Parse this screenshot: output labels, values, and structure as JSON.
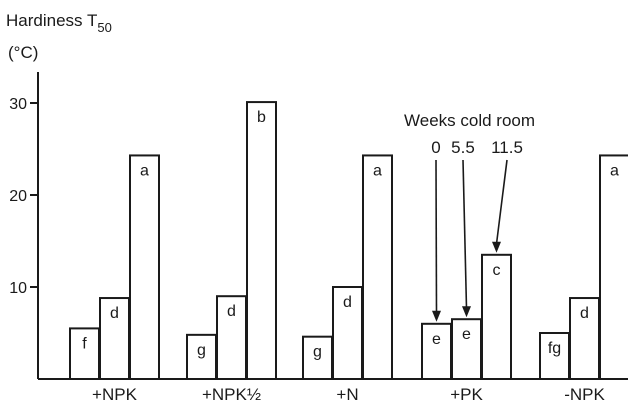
{
  "chart_data": {
    "type": "bar",
    "ylabel_line1": "Hardiness T",
    "ylabel_sub": "50",
    "ylabel_line2": "(°C)",
    "xlabel": "",
    "ylim": [
      0,
      31
    ],
    "yticks": [
      10,
      20,
      30
    ],
    "grid": false,
    "categories": [
      "+NPK",
      "+NPK½",
      "+N",
      "+PK",
      "-NPK"
    ],
    "series": [
      {
        "values": [
          5.5,
          4.8,
          4.6,
          6.0,
          5.0
        ],
        "letters": [
          "f",
          "g",
          "g",
          "e",
          "fg"
        ]
      },
      {
        "values": [
          8.8,
          9.0,
          10.0,
          6.5,
          8.8
        ],
        "letters": [
          "d",
          "d",
          "d",
          "e",
          "d"
        ]
      },
      {
        "values": [
          24.3,
          30.1,
          24.3,
          13.5,
          24.3
        ],
        "letters": [
          "a",
          "b",
          "a",
          "c",
          "a"
        ]
      }
    ],
    "annotation": {
      "title": "Weeks cold room",
      "labels": [
        "0",
        "5.5",
        "11.5"
      ],
      "category_index": 3
    }
  }
}
